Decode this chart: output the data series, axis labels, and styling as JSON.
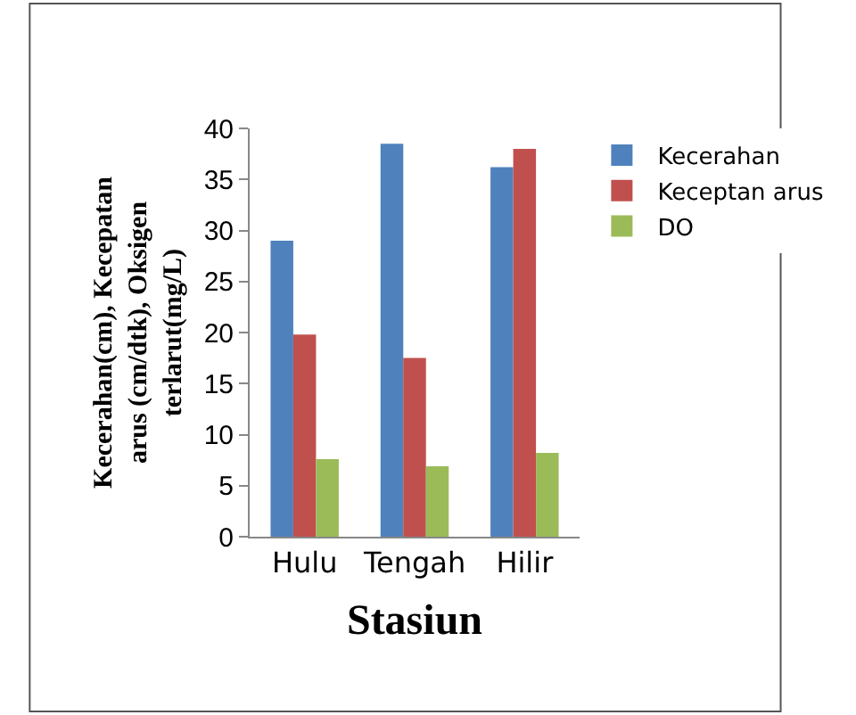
{
  "chart_data": {
    "type": "bar",
    "xlabel": "Stasiun",
    "ylabel": "Kecerahan(cm), Kecepatan arus (cm/dtk), Oksigen terlarut(mg/L)",
    "categories": [
      "Hulu",
      "Tengah",
      "Hilir"
    ],
    "series": [
      {
        "name": "Kecerahan",
        "color": "#4f81bd",
        "values": [
          29,
          38.5,
          36.2
        ]
      },
      {
        "name": "Keceptan arus",
        "color": "#c0504d",
        "values": [
          19.8,
          17.5,
          38
        ]
      },
      {
        "name": "DO",
        "color": "#9bbb59",
        "values": [
          7.6,
          6.9,
          8.2
        ]
      }
    ],
    "ylim": [
      0,
      40
    ],
    "yticks": [
      0,
      5,
      10,
      15,
      20,
      25,
      30,
      35,
      40
    ],
    "grid": false,
    "legend": "right"
  }
}
